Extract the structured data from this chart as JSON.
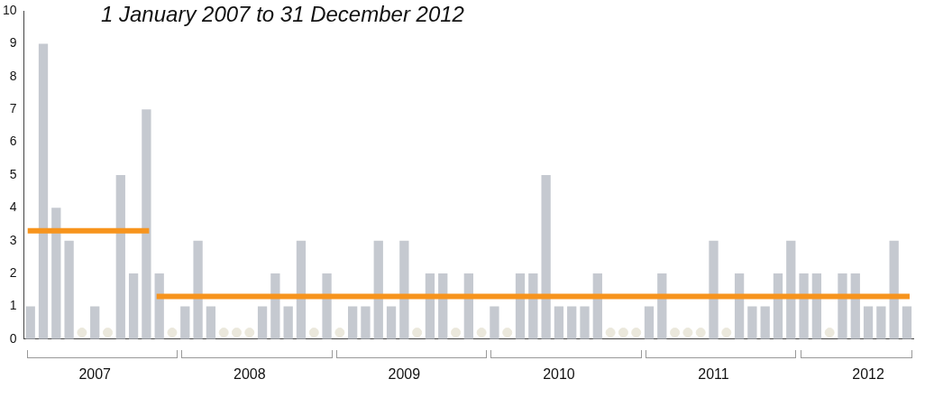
{
  "chart_data": {
    "type": "bar",
    "title": "1 January 2007 to 31 December 2012",
    "categories": [
      null,
      null,
      null,
      null,
      null,
      "2007",
      null,
      null,
      null,
      null,
      null,
      null,
      null,
      null,
      null,
      null,
      null,
      "2008",
      null,
      null,
      null,
      null,
      null,
      null,
      null,
      null,
      null,
      null,
      null,
      "2009",
      null,
      null,
      null,
      null,
      null,
      null,
      null,
      null,
      null,
      null,
      null,
      "2010",
      null,
      null,
      null,
      null,
      null,
      null,
      null,
      null,
      null,
      null,
      null,
      "2011",
      null,
      null,
      null,
      null,
      null,
      null,
      null,
      null,
      null,
      null,
      null,
      "2012",
      null,
      null,
      null
    ],
    "series": [
      {
        "color": "#c5c9d0",
        "values": [
          1,
          9,
          4,
          3,
          0,
          1,
          0,
          5,
          2,
          7,
          2,
          0,
          1,
          3,
          1,
          0,
          0,
          0,
          1,
          2,
          1,
          3,
          0,
          2,
          0,
          1,
          1,
          3,
          1,
          3,
          0,
          2,
          2,
          0,
          2,
          0,
          1,
          0,
          2,
          2,
          5,
          1,
          1,
          1,
          2,
          0,
          0,
          0,
          1,
          2,
          0,
          0,
          0,
          3,
          0,
          2,
          1,
          1,
          2,
          3,
          2,
          2,
          0,
          2,
          2,
          1,
          1,
          3,
          1
        ]
      },
      {
        "type": "scatter",
        "color": "#ebe8dc",
        "values": [
          null,
          null,
          null,
          null,
          0.2,
          null,
          0.2,
          null,
          null,
          null,
          null,
          0.2,
          null,
          null,
          null,
          0.2,
          0.2,
          0.2,
          null,
          null,
          null,
          null,
          0.2,
          null,
          0.2,
          null,
          null,
          null,
          null,
          null,
          0.2,
          null,
          null,
          0.2,
          null,
          0.2,
          null,
          0.2,
          null,
          null,
          null,
          null,
          null,
          null,
          null,
          0.2,
          0.2,
          0.2,
          null,
          null,
          0.2,
          0.2,
          0.2,
          null,
          0.2,
          null,
          null,
          null,
          null,
          null,
          null,
          null,
          0.2,
          null,
          null,
          null,
          null,
          null,
          null
        ]
      },
      {
        "type": "line",
        "color": "#f7941d",
        "values": [
          3.3,
          3.3,
          3.3,
          3.3,
          3.3,
          3.3,
          3.3,
          3.3,
          3.3,
          3.3,
          null,
          null,
          null,
          null,
          null,
          null,
          null,
          null,
          null,
          null,
          null,
          null,
          null,
          null,
          null,
          null,
          null,
          null,
          null,
          null,
          null,
          null,
          null,
          null,
          null,
          null,
          null,
          null,
          null,
          null,
          null,
          null,
          null,
          null,
          null,
          null,
          null,
          null,
          null,
          null,
          null,
          null,
          null,
          null,
          null,
          null,
          null,
          null,
          null,
          null,
          null,
          null,
          null,
          null,
          null,
          null,
          null,
          null,
          null
        ]
      },
      {
        "type": "line",
        "color": "#f7941d",
        "values": [
          null,
          null,
          null,
          null,
          null,
          null,
          null,
          null,
          null,
          null,
          1.3,
          1.3,
          1.3,
          1.3,
          1.3,
          1.3,
          1.3,
          1.3,
          1.3,
          1.3,
          1.3,
          1.3,
          1.3,
          1.3,
          1.3,
          1.3,
          1.3,
          1.3,
          1.3,
          1.3,
          1.3,
          1.3,
          1.3,
          1.3,
          1.3,
          1.3,
          1.3,
          1.3,
          1.3,
          1.3,
          1.3,
          1.3,
          1.3,
          1.3,
          1.3,
          1.3,
          1.3,
          1.3,
          1.3,
          1.3,
          1.3,
          1.3,
          1.3,
          1.3,
          1.3,
          1.3,
          1.3,
          1.3,
          1.3,
          1.3,
          1.3,
          1.3,
          1.3,
          1.3,
          1.3,
          1.3,
          1.3,
          1.3,
          1.3
        ]
      }
    ],
    "ylim": [
      0,
      10
    ],
    "yticks": [
      0,
      1,
      2,
      3,
      4,
      5,
      6,
      7,
      8,
      9,
      10
    ],
    "grid": false,
    "legend": false
  }
}
